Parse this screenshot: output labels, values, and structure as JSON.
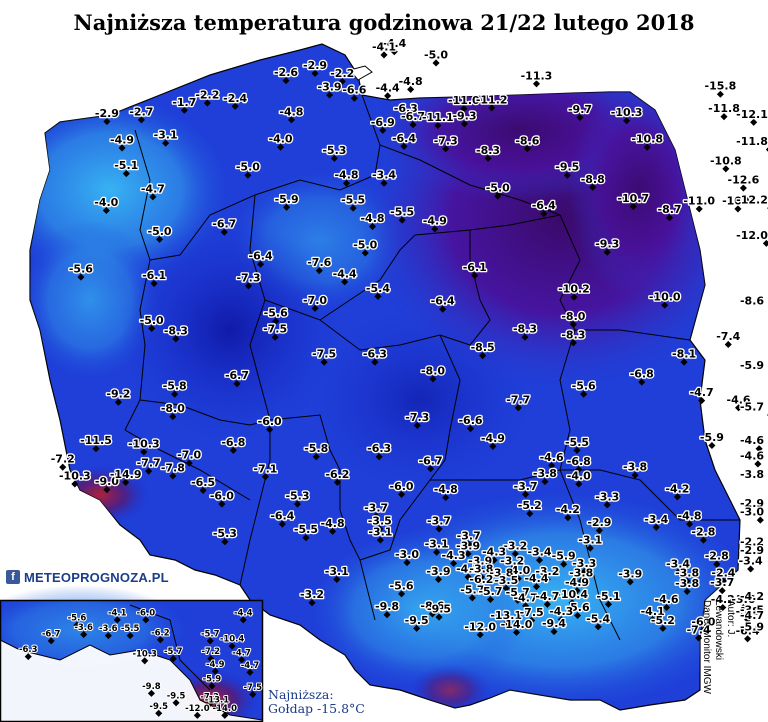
{
  "title": "Najniższa temperatura godzinowa 21/22 lutego 2018",
  "logo": {
    "icon": "f",
    "text": "METEOPROGNOZA.PL"
  },
  "author": {
    "line1": "Autor: J. Lewandowski",
    "line2": "Dane: Monitor IMGW"
  },
  "lowest": {
    "line1": "Najniższa:",
    "line2": "Gołdap -15.8°C"
  },
  "colors": {
    "purple": "#3a0a6a",
    "blue": "#1a2fd0",
    "light": "#2fa6ee",
    "water": "#ffffff"
  },
  "stations": [
    {
      "v": "-4.4",
      "lon": 15.79,
      "lat": 54.51
    },
    {
      "v": "-4.1",
      "lon": 15.62,
      "lat": 54.47
    },
    {
      "v": "-5.0",
      "lon": 16.48,
      "lat": 54.37
    },
    {
      "v": "-2.9",
      "lon": 14.48,
      "lat": 54.24
    },
    {
      "v": "-2.6",
      "lon": 14.0,
      "lat": 54.15
    },
    {
      "v": "-2.2",
      "lon": 14.93,
      "lat": 54.14
    },
    {
      "v": "-4.8",
      "lon": 16.06,
      "lat": 54.04
    },
    {
      "v": "-3.9",
      "lon": 14.72,
      "lat": 53.97
    },
    {
      "v": "-6.6",
      "lon": 15.13,
      "lat": 53.93
    },
    {
      "v": "-4.4",
      "lon": 15.68,
      "lat": 53.96
    },
    {
      "v": "-11.3",
      "lon": 18.14,
      "lat": 54.11
    },
    {
      "v": "-15.8",
      "lon": 21.18,
      "lat": 53.98
    },
    {
      "v": "-2.2",
      "lon": 12.7,
      "lat": 53.87
    },
    {
      "v": "-1.7",
      "lon": 12.32,
      "lat": 53.78
    },
    {
      "v": "-2.4",
      "lon": 13.16,
      "lat": 53.83
    },
    {
      "v": "-11.0",
      "lon": 16.94,
      "lat": 53.8
    },
    {
      "v": "-11.2",
      "lon": 17.4,
      "lat": 53.81
    },
    {
      "v": "-6.3",
      "lon": 15.98,
      "lat": 53.7
    },
    {
      "v": "-2.9",
      "lon": 11.04,
      "lat": 53.64
    },
    {
      "v": "-2.7",
      "lon": 11.61,
      "lat": 53.66
    },
    {
      "v": "-4.8",
      "lon": 14.09,
      "lat": 53.66
    },
    {
      "v": "-9.7",
      "lon": 18.86,
      "lat": 53.69
    },
    {
      "v": "-10.3",
      "lon": 19.63,
      "lat": 53.65
    },
    {
      "v": "-11.8",
      "lon": 21.24,
      "lat": 53.7
    },
    {
      "v": "-12.1",
      "lon": 21.73,
      "lat": 53.63
    },
    {
      "v": "-6.7",
      "lon": 16.1,
      "lat": 53.6
    },
    {
      "v": "-11.1",
      "lon": 16.51,
      "lat": 53.59
    },
    {
      "v": "-9.3",
      "lon": 16.95,
      "lat": 53.61
    },
    {
      "v": "-6.9",
      "lon": 15.6,
      "lat": 53.53
    },
    {
      "v": "-3.1",
      "lon": 12.01,
      "lat": 53.37
    },
    {
      "v": "-4.9",
      "lon": 11.29,
      "lat": 53.31
    },
    {
      "v": "-4.0",
      "lon": 13.91,
      "lat": 53.32
    },
    {
      "v": "-6.4",
      "lon": 15.95,
      "lat": 53.33
    },
    {
      "v": "-7.3",
      "lon": 16.64,
      "lat": 53.3
    },
    {
      "v": "-8.6",
      "lon": 17.99,
      "lat": 53.3
    },
    {
      "v": "-10.8",
      "lon": 19.97,
      "lat": 53.32
    },
    {
      "v": "-11.8",
      "lon": 21.99,
      "lat": 53.29
    },
    {
      "v": "-5.3",
      "lon": 14.8,
      "lat": 53.18
    },
    {
      "v": "-8.3",
      "lon": 17.34,
      "lat": 53.18
    },
    {
      "v": "-10.8",
      "lon": 21.27,
      "lat": 53.05
    },
    {
      "v": "-5.1",
      "lon": 11.36,
      "lat": 52.99
    },
    {
      "v": "-5.0",
      "lon": 13.37,
      "lat": 52.97
    },
    {
      "v": "-9.5",
      "lon": 18.65,
      "lat": 52.97
    },
    {
      "v": "-3.4",
      "lon": 15.62,
      "lat": 52.87
    },
    {
      "v": "-4.8",
      "lon": 15.0,
      "lat": 52.87
    },
    {
      "v": "-8.8",
      "lon": 19.07,
      "lat": 52.82
    },
    {
      "v": "-12.6",
      "lon": 21.56,
      "lat": 52.81
    },
    {
      "v": "-4.7",
      "lon": 11.8,
      "lat": 52.7
    },
    {
      "v": "-5.0",
      "lon": 17.5,
      "lat": 52.71
    },
    {
      "v": "-5.9",
      "lon": 14.01,
      "lat": 52.57
    },
    {
      "v": "-5.5",
      "lon": 15.11,
      "lat": 52.56
    },
    {
      "v": "-10.7",
      "lon": 19.74,
      "lat": 52.58
    },
    {
      "v": "-11.0",
      "lon": 20.83,
      "lat": 52.55
    },
    {
      "v": "-10.0",
      "lon": 21.47,
      "lat": 52.55
    },
    {
      "v": "-12.2",
      "lon": 22.01,
      "lat": 52.56
    },
    {
      "v": "-4.0",
      "lon": 11.03,
      "lat": 52.53
    },
    {
      "v": "-6.4",
      "lon": 18.26,
      "lat": 52.49
    },
    {
      "v": "-8.7",
      "lon": 20.34,
      "lat": 52.44
    },
    {
      "v": "-5.5",
      "lon": 15.92,
      "lat": 52.41
    },
    {
      "v": "-4.8",
      "lon": 15.43,
      "lat": 52.33
    },
    {
      "v": "-4.9",
      "lon": 16.46,
      "lat": 52.3
    },
    {
      "v": "-6.7",
      "lon": 12.98,
      "lat": 52.26
    },
    {
      "v": "-5.0",
      "lon": 11.91,
      "lat": 52.17
    },
    {
      "v": "-12.0",
      "lon": 21.94,
      "lat": 52.12
    },
    {
      "v": "-9.3",
      "lon": 19.31,
      "lat": 52.01
    },
    {
      "v": "-5.0",
      "lon": 15.31,
      "lat": 52.0
    },
    {
      "v": "-6.4",
      "lon": 13.58,
      "lat": 51.86
    },
    {
      "v": "-7.6",
      "lon": 14.55,
      "lat": 51.78
    },
    {
      "v": "-6.1",
      "lon": 17.12,
      "lat": 51.72
    },
    {
      "v": "-4.4",
      "lon": 14.97,
      "lat": 51.64
    },
    {
      "v": "-5.6",
      "lon": 10.61,
      "lat": 51.7
    },
    {
      "v": "-7.3",
      "lon": 13.38,
      "lat": 51.59
    },
    {
      "v": "-6.1",
      "lon": 11.82,
      "lat": 51.62
    },
    {
      "v": "-5.4",
      "lon": 15.52,
      "lat": 51.46
    },
    {
      "v": "-10.2",
      "lon": 18.76,
      "lat": 51.45
    },
    {
      "v": "-10.0",
      "lon": 20.26,
      "lat": 51.35
    },
    {
      "v": "-8.6",
      "lon": 22.52,
      "lat": 51.3
    },
    {
      "v": "-7.0",
      "lon": 14.48,
      "lat": 51.31
    },
    {
      "v": "-6.4",
      "lon": 16.59,
      "lat": 51.3
    },
    {
      "v": "-5.6",
      "lon": 13.83,
      "lat": 51.15
    },
    {
      "v": "-8.0",
      "lon": 18.75,
      "lat": 51.11
    },
    {
      "v": "-5.0",
      "lon": 11.78,
      "lat": 51.06
    },
    {
      "v": "-8.3",
      "lon": 17.95,
      "lat": 50.95
    },
    {
      "v": "-7.5",
      "lon": 13.82,
      "lat": 50.95
    },
    {
      "v": "-8.3",
      "lon": 18.75,
      "lat": 50.88
    },
    {
      "v": "-7.4",
      "lon": 21.31,
      "lat": 50.86
    },
    {
      "v": "-8.3",
      "lon": 12.18,
      "lat": 50.93
    },
    {
      "v": "-8.5",
      "lon": 17.25,
      "lat": 50.72
    },
    {
      "v": "-7.5",
      "lon": 14.63,
      "lat": 50.64
    },
    {
      "v": "-6.3",
      "lon": 15.47,
      "lat": 50.64
    },
    {
      "v": "-8.1",
      "lon": 20.58,
      "lat": 50.64
    },
    {
      "v": "-5.9",
      "lon": 22.4,
      "lat": 50.5
    },
    {
      "v": "-8.0",
      "lon": 16.43,
      "lat": 50.43
    },
    {
      "v": "-6.8",
      "lon": 19.88,
      "lat": 50.39
    },
    {
      "v": "-6.7",
      "lon": 13.19,
      "lat": 50.37
    },
    {
      "v": "-5.8",
      "lon": 12.16,
      "lat": 50.24
    },
    {
      "v": "-5.6",
      "lon": 18.92,
      "lat": 50.24
    },
    {
      "v": "-4.7",
      "lon": 20.87,
      "lat": 50.16
    },
    {
      "v": "-4.6",
      "lon": 21.48,
      "lat": 50.07
    },
    {
      "v": "-9.2",
      "lon": 11.23,
      "lat": 50.14
    },
    {
      "v": "-7.7",
      "lon": 17.84,
      "lat": 50.07
    },
    {
      "v": "-5.7",
      "lon": 22.01,
      "lat": 49.98
    },
    {
      "v": "-8.0",
      "lon": 12.13,
      "lat": 49.96
    },
    {
      "v": "-7.3",
      "lon": 16.17,
      "lat": 49.85
    },
    {
      "v": "-6.6",
      "lon": 17.05,
      "lat": 49.81
    },
    {
      "v": "-6.0",
      "lon": 13.73,
      "lat": 49.8
    },
    {
      "v": "-4.9",
      "lon": 17.42,
      "lat": 49.59
    },
    {
      "v": "-5.9",
      "lon": 21.04,
      "lat": 49.6
    },
    {
      "v": "-4.6",
      "lon": 21.82,
      "lat": 49.56
    },
    {
      "v": "-5.5",
      "lon": 18.81,
      "lat": 49.54
    },
    {
      "v": "-6.8",
      "lon": 13.13,
      "lat": 49.54
    },
    {
      "v": "-10.3",
      "lon": 11.65,
      "lat": 49.52
    },
    {
      "v": "-5.8",
      "lon": 14.5,
      "lat": 49.46
    },
    {
      "v": "-6.3",
      "lon": 15.54,
      "lat": 49.46
    },
    {
      "v": "-11.5",
      "lon": 10.86,
      "lat": 49.56
    },
    {
      "v": "-7.2",
      "lon": 10.31,
      "lat": 49.33
    },
    {
      "v": "-7.0",
      "lon": 12.4,
      "lat": 49.38
    },
    {
      "v": "-6.7",
      "lon": 16.39,
      "lat": 49.31
    },
    {
      "v": "-4.6",
      "lon": 18.39,
      "lat": 49.35
    },
    {
      "v": "-6.8",
      "lon": 18.84,
      "lat": 49.3
    },
    {
      "v": "-4.6",
      "lon": 21.8,
      "lat": 49.37
    },
    {
      "v": "-7.7",
      "lon": 11.73,
      "lat": 49.28
    },
    {
      "v": "-7.8",
      "lon": 12.13,
      "lat": 49.22
    },
    {
      "v": "-7.1",
      "lon": 13.66,
      "lat": 49.21
    },
    {
      "v": "-3.8",
      "lon": 19.77,
      "lat": 49.23
    },
    {
      "v": "-6.2",
      "lon": 14.85,
      "lat": 49.14
    },
    {
      "v": "-3.8",
      "lon": 18.28,
      "lat": 49.15
    },
    {
      "v": "-4.0",
      "lon": 18.84,
      "lat": 49.12
    },
    {
      "v": "-3.8",
      "lon": 22.71,
      "lat": 49.14
    },
    {
      "v": "-10.3",
      "lon": 10.51,
      "lat": 49.12
    },
    {
      "v": "-9.0",
      "lon": 11.04,
      "lat": 49.05
    },
    {
      "v": "-14.9",
      "lon": 11.35,
      "lat": 49.14
    },
    {
      "v": "-6.5",
      "lon": 12.63,
      "lat": 49.04
    },
    {
      "v": "-6.0",
      "lon": 15.91,
      "lat": 48.99
    },
    {
      "v": "-4.8",
      "lon": 16.64,
      "lat": 48.95
    },
    {
      "v": "-3.7",
      "lon": 17.96,
      "lat": 48.99
    },
    {
      "v": "-4.2",
      "lon": 20.47,
      "lat": 48.96
    },
    {
      "v": "-6.0",
      "lon": 12.94,
      "lat": 48.87
    },
    {
      "v": "-5.3",
      "lon": 14.19,
      "lat": 48.87
    },
    {
      "v": "-3.3",
      "lon": 19.31,
      "lat": 48.86
    },
    {
      "v": "-2.9",
      "lon": 22.68,
      "lat": 48.78
    },
    {
      "v": "-5.2",
      "lon": 18.03,
      "lat": 48.75
    },
    {
      "v": "-4.2",
      "lon": 18.66,
      "lat": 48.7
    },
    {
      "v": "-3.0",
      "lon": 21.84,
      "lat": 48.67
    },
    {
      "v": "-3.7",
      "lon": 15.49,
      "lat": 48.72
    },
    {
      "v": "-4.8",
      "lon": 20.67,
      "lat": 48.62
    },
    {
      "v": "-3.4",
      "lon": 20.12,
      "lat": 48.58
    },
    {
      "v": "-6.4",
      "lon": 13.94,
      "lat": 48.62
    },
    {
      "v": "-3.5",
      "lon": 15.55,
      "lat": 48.56
    },
    {
      "v": "-3.7",
      "lon": 16.53,
      "lat": 48.56
    },
    {
      "v": "-2.9",
      "lon": 19.18,
      "lat": 48.54
    },
    {
      "v": "-4.8",
      "lon": 14.77,
      "lat": 48.53
    },
    {
      "v": "-5.5",
      "lon": 14.33,
      "lat": 48.45
    },
    {
      "v": "-2.8",
      "lon": 20.9,
      "lat": 48.42
    },
    {
      "v": "-3.1",
      "lon": 15.56,
      "lat": 48.42
    },
    {
      "v": "-5.3",
      "lon": 12.99,
      "lat": 48.4
    },
    {
      "v": "-3.7",
      "lon": 17.02,
      "lat": 48.37
    },
    {
      "v": "-3.1",
      "lon": 19.03,
      "lat": 48.32
    },
    {
      "v": "-2.2",
      "lon": 22.39,
      "lat": 48.3
    },
    {
      "v": "-3.1",
      "lon": 16.49,
      "lat": 48.27
    },
    {
      "v": "-3.9",
      "lon": 17.01,
      "lat": 48.25
    },
    {
      "v": "-3.2",
      "lon": 17.79,
      "lat": 48.25
    },
    {
      "v": "-2.9",
      "lon": 22.04,
      "lat": 48.19
    },
    {
      "v": "-3.4",
      "lon": 18.19,
      "lat": 48.17
    },
    {
      "v": "-4.3",
      "lon": 17.44,
      "lat": 48.17
    },
    {
      "v": "-3.0",
      "lon": 16.0,
      "lat": 48.14
    },
    {
      "v": "-4.3",
      "lon": 16.77,
      "lat": 48.13
    },
    {
      "v": "-5.9",
      "lon": 18.59,
      "lat": 48.12
    },
    {
      "v": "-2.8",
      "lon": 21.12,
      "lat": 48.12
    },
    {
      "v": "-3.4",
      "lon": 21.68,
      "lat": 48.06
    },
    {
      "v": "-3.9",
      "lon": 17.21,
      "lat": 48.06
    },
    {
      "v": "-3.2",
      "lon": 17.74,
      "lat": 48.06
    },
    {
      "v": "-3.3",
      "lon": 18.93,
      "lat": 48.03
    },
    {
      "v": "-3.4",
      "lon": 20.48,
      "lat": 48.02
    },
    {
      "v": "-4.2",
      "lon": 17.01,
      "lat": 47.96
    },
    {
      "v": "-3.8",
      "lon": 17.23,
      "lat": 47.96
    },
    {
      "v": "-4.0",
      "lon": 17.84,
      "lat": 47.94
    },
    {
      "v": "-3.1",
      "lon": 14.84,
      "lat": 47.93
    },
    {
      "v": "-3.9",
      "lon": 16.52,
      "lat": 47.93
    },
    {
      "v": "-3.2",
      "lon": 18.32,
      "lat": 47.93
    },
    {
      "v": "-3.9",
      "lon": 19.69,
      "lat": 47.9
    },
    {
      "v": "-3.8",
      "lon": 20.63,
      "lat": 47.91
    },
    {
      "v": "-2.4",
      "lon": 21.23,
      "lat": 47.91
    },
    {
      "v": "-3.8",
      "lon": 17.56,
      "lat": 47.91
    },
    {
      "v": "-3.8",
      "lon": 18.88,
      "lat": 47.91
    },
    {
      "v": "-4.4",
      "lon": 18.14,
      "lat": 47.84
    },
    {
      "v": "-3.7",
      "lon": 21.21,
      "lat": 47.79
    },
    {
      "v": "-6.2",
      "lon": 17.23,
      "lat": 47.83
    },
    {
      "v": "-3.5",
      "lon": 17.64,
      "lat": 47.82
    },
    {
      "v": "-4.9",
      "lon": 18.81,
      "lat": 47.79
    },
    {
      "v": "-5.6",
      "lon": 15.91,
      "lat": 47.75
    },
    {
      "v": "-5.7",
      "lon": 17.08,
      "lat": 47.7
    },
    {
      "v": "-5.7",
      "lon": 17.38,
      "lat": 47.68
    },
    {
      "v": "-5.7",
      "lon": 17.83,
      "lat": 47.67
    },
    {
      "v": "-10.4",
      "lon": 18.73,
      "lat": 47.64
    },
    {
      "v": "-5.1",
      "lon": 19.33,
      "lat": 47.62
    },
    {
      "v": "-3.8",
      "lon": 20.63,
      "lat": 47.78
    },
    {
      "v": "-3.2",
      "lon": 14.43,
      "lat": 47.64
    },
    {
      "v": "-4.7",
      "lon": 17.96,
      "lat": 47.6
    },
    {
      "v": "-4.7",
      "lon": 18.32,
      "lat": 47.62
    },
    {
      "v": "-4.2",
      "lon": 21.22,
      "lat": 47.58
    },
    {
      "v": "-3.6",
      "lon": 21.56,
      "lat": 47.58
    },
    {
      "v": "-4.2",
      "lon": 22.25,
      "lat": 47.62
    },
    {
      "v": "-4.6",
      "lon": 20.29,
      "lat": 47.58
    },
    {
      "v": "-9.8",
      "lon": 15.67,
      "lat": 47.49
    },
    {
      "v": "-8.6",
      "lon": 16.42,
      "lat": 47.5
    },
    {
      "v": "-9.5",
      "lon": 16.53,
      "lat": 47.46
    },
    {
      "v": "-5.6",
      "lon": 18.82,
      "lat": 47.48
    },
    {
      "v": "-4.3",
      "lon": 18.55,
      "lat": 47.43
    },
    {
      "v": "-4.1",
      "lon": 20.06,
      "lat": 47.43
    },
    {
      "v": "-5.8",
      "lon": 21.63,
      "lat": 47.43
    },
    {
      "v": "-3.5",
      "lon": 22.05,
      "lat": 47.45
    },
    {
      "v": "-13.1",
      "lon": 17.64,
      "lat": 47.38
    },
    {
      "v": "-7.5",
      "lon": 18.06,
      "lat": 47.42
    },
    {
      "v": "-4.7",
      "lon": 22.69,
      "lat": 47.38
    },
    {
      "v": "-9.5",
      "lon": 16.16,
      "lat": 47.32
    },
    {
      "v": "-5.4",
      "lon": 19.16,
      "lat": 47.34
    },
    {
      "v": "-5.2",
      "lon": 20.23,
      "lat": 47.32
    },
    {
      "v": "-6.0",
      "lon": 20.9,
      "lat": 47.3
    },
    {
      "v": "-9.4",
      "lon": 18.43,
      "lat": 47.28
    },
    {
      "v": "-14.0",
      "lon": 17.81,
      "lat": 47.27
    },
    {
      "v": "-12.0",
      "lon": 17.21,
      "lat": 47.24
    },
    {
      "v": "-7.4",
      "lon": 20.82,
      "lat": 47.2
    },
    {
      "v": "-6.4",
      "lon": 21.63,
      "lat": 47.19
    },
    {
      "v": "-5.9",
      "lon": 22.36,
      "lat": 47.24
    }
  ],
  "inset_stations": [
    {
      "v": "-5.6",
      "lon": 12.56,
      "lat": 48.08
    },
    {
      "v": "-4.1",
      "lon": 13.28,
      "lat": 48.13
    },
    {
      "v": "-6.0",
      "lon": 13.79,
      "lat": 48.13
    },
    {
      "v": "-4.4",
      "lon": 15.53,
      "lat": 48.13
    },
    {
      "v": "-3.6",
      "lon": 12.68,
      "lat": 47.99
    },
    {
      "v": "-6.7",
      "lon": 12.1,
      "lat": 47.93
    },
    {
      "v": "-3.6",
      "lon": 13.12,
      "lat": 47.98
    },
    {
      "v": "-5.5",
      "lon": 13.51,
      "lat": 47.98
    },
    {
      "v": "-6.2",
      "lon": 14.05,
      "lat": 47.94
    },
    {
      "v": "-5.7",
      "lon": 14.94,
      "lat": 47.93
    },
    {
      "v": "-10.4",
      "lon": 15.33,
      "lat": 47.88
    },
    {
      "v": "-6.3",
      "lon": 11.69,
      "lat": 47.78
    },
    {
      "v": "-10.3",
      "lon": 13.77,
      "lat": 47.74
    },
    {
      "v": "-5.7",
      "lon": 14.28,
      "lat": 47.76
    },
    {
      "v": "-7.2",
      "lon": 14.95,
      "lat": 47.76
    },
    {
      "v": "-4.7",
      "lon": 15.5,
      "lat": 47.75
    },
    {
      "v": "-4.9",
      "lon": 15.03,
      "lat": 47.64
    },
    {
      "v": "-4.7",
      "lon": 15.65,
      "lat": 47.63
    },
    {
      "v": "-5.9",
      "lon": 14.97,
      "lat": 47.5
    },
    {
      "v": "-9.8",
      "lon": 13.89,
      "lat": 47.43
    },
    {
      "v": "-7.5",
      "lon": 15.7,
      "lat": 47.42
    },
    {
      "v": "-9.5",
      "lon": 14.33,
      "lat": 47.34
    },
    {
      "v": "-7.2",
      "lon": 14.93,
      "lat": 47.33
    },
    {
      "v": "-13.1",
      "lon": 15.06,
      "lat": 47.3
    },
    {
      "v": "-9.5",
      "lon": 14.02,
      "lat": 47.24
    },
    {
      "v": "-12.0",
      "lon": 14.71,
      "lat": 47.22
    },
    {
      "v": "-14.0",
      "lon": 15.2,
      "lat": 47.22
    }
  ]
}
